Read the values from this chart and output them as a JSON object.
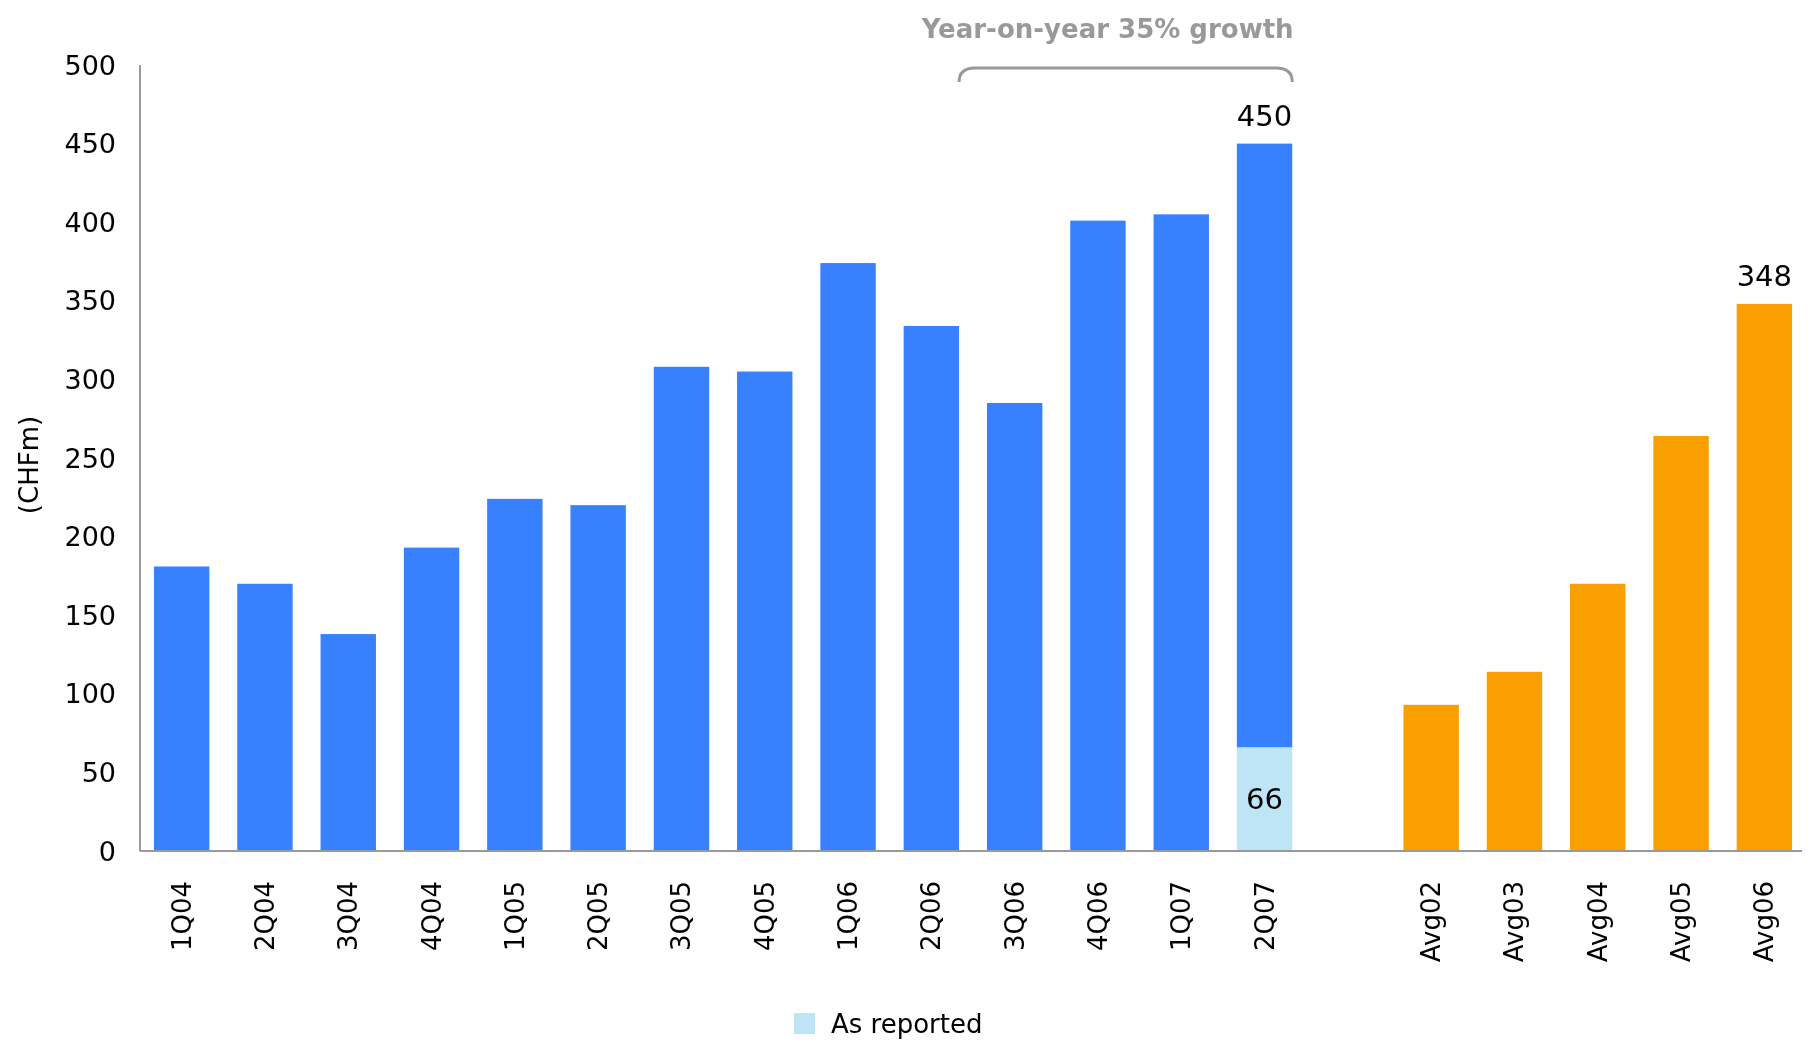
{
  "chart_data": {
    "type": "bar",
    "ylabel": "(CHFm)",
    "annotations": [
      "Year-on-year 35% growth"
    ],
    "categories": [
      "1Q04",
      "2Q04",
      "3Q04",
      "4Q04",
      "1Q05",
      "2Q05",
      "3Q05",
      "4Q05",
      "1Q06",
      "2Q06",
      "3Q06",
      "4Q06",
      "1Q07",
      "2Q07",
      null,
      "Avg02",
      "Avg03",
      "Avg04",
      "Avg05",
      "Avg06"
    ],
    "series": [
      {
        "name": "As reported",
        "color": "#bde5f5",
        "values": [
          null,
          null,
          null,
          null,
          null,
          null,
          null,
          null,
          null,
          null,
          null,
          null,
          null,
          66,
          null,
          null,
          null,
          null,
          null,
          null
        ],
        "value_labels": [
          null,
          null,
          null,
          null,
          null,
          null,
          null,
          null,
          null,
          null,
          null,
          null,
          null,
          "66",
          null,
          null,
          null,
          null,
          null,
          null
        ]
      },
      {
        "color": "#3781fe",
        "values": [
          181,
          170,
          138,
          193,
          224,
          220,
          308,
          305,
          374,
          334,
          285,
          401,
          405,
          384,
          null,
          null,
          null,
          null,
          null,
          null
        ]
      },
      {
        "color": "#f9a000",
        "values": [
          null,
          null,
          null,
          null,
          null,
          null,
          null,
          null,
          null,
          null,
          null,
          null,
          null,
          null,
          null,
          93,
          114,
          170,
          264,
          348
        ]
      }
    ],
    "stacked": true,
    "totals": [
      null,
      null,
      null,
      null,
      null,
      null,
      null,
      null,
      null,
      null,
      null,
      null,
      null,
      "450",
      null,
      null,
      null,
      null,
      null,
      "348"
    ],
    "ylim": [
      0,
      500
    ],
    "yticks": [
      0,
      50,
      100,
      150,
      200,
      250,
      300,
      350,
      400,
      450,
      500
    ],
    "legend": "bottom"
  }
}
